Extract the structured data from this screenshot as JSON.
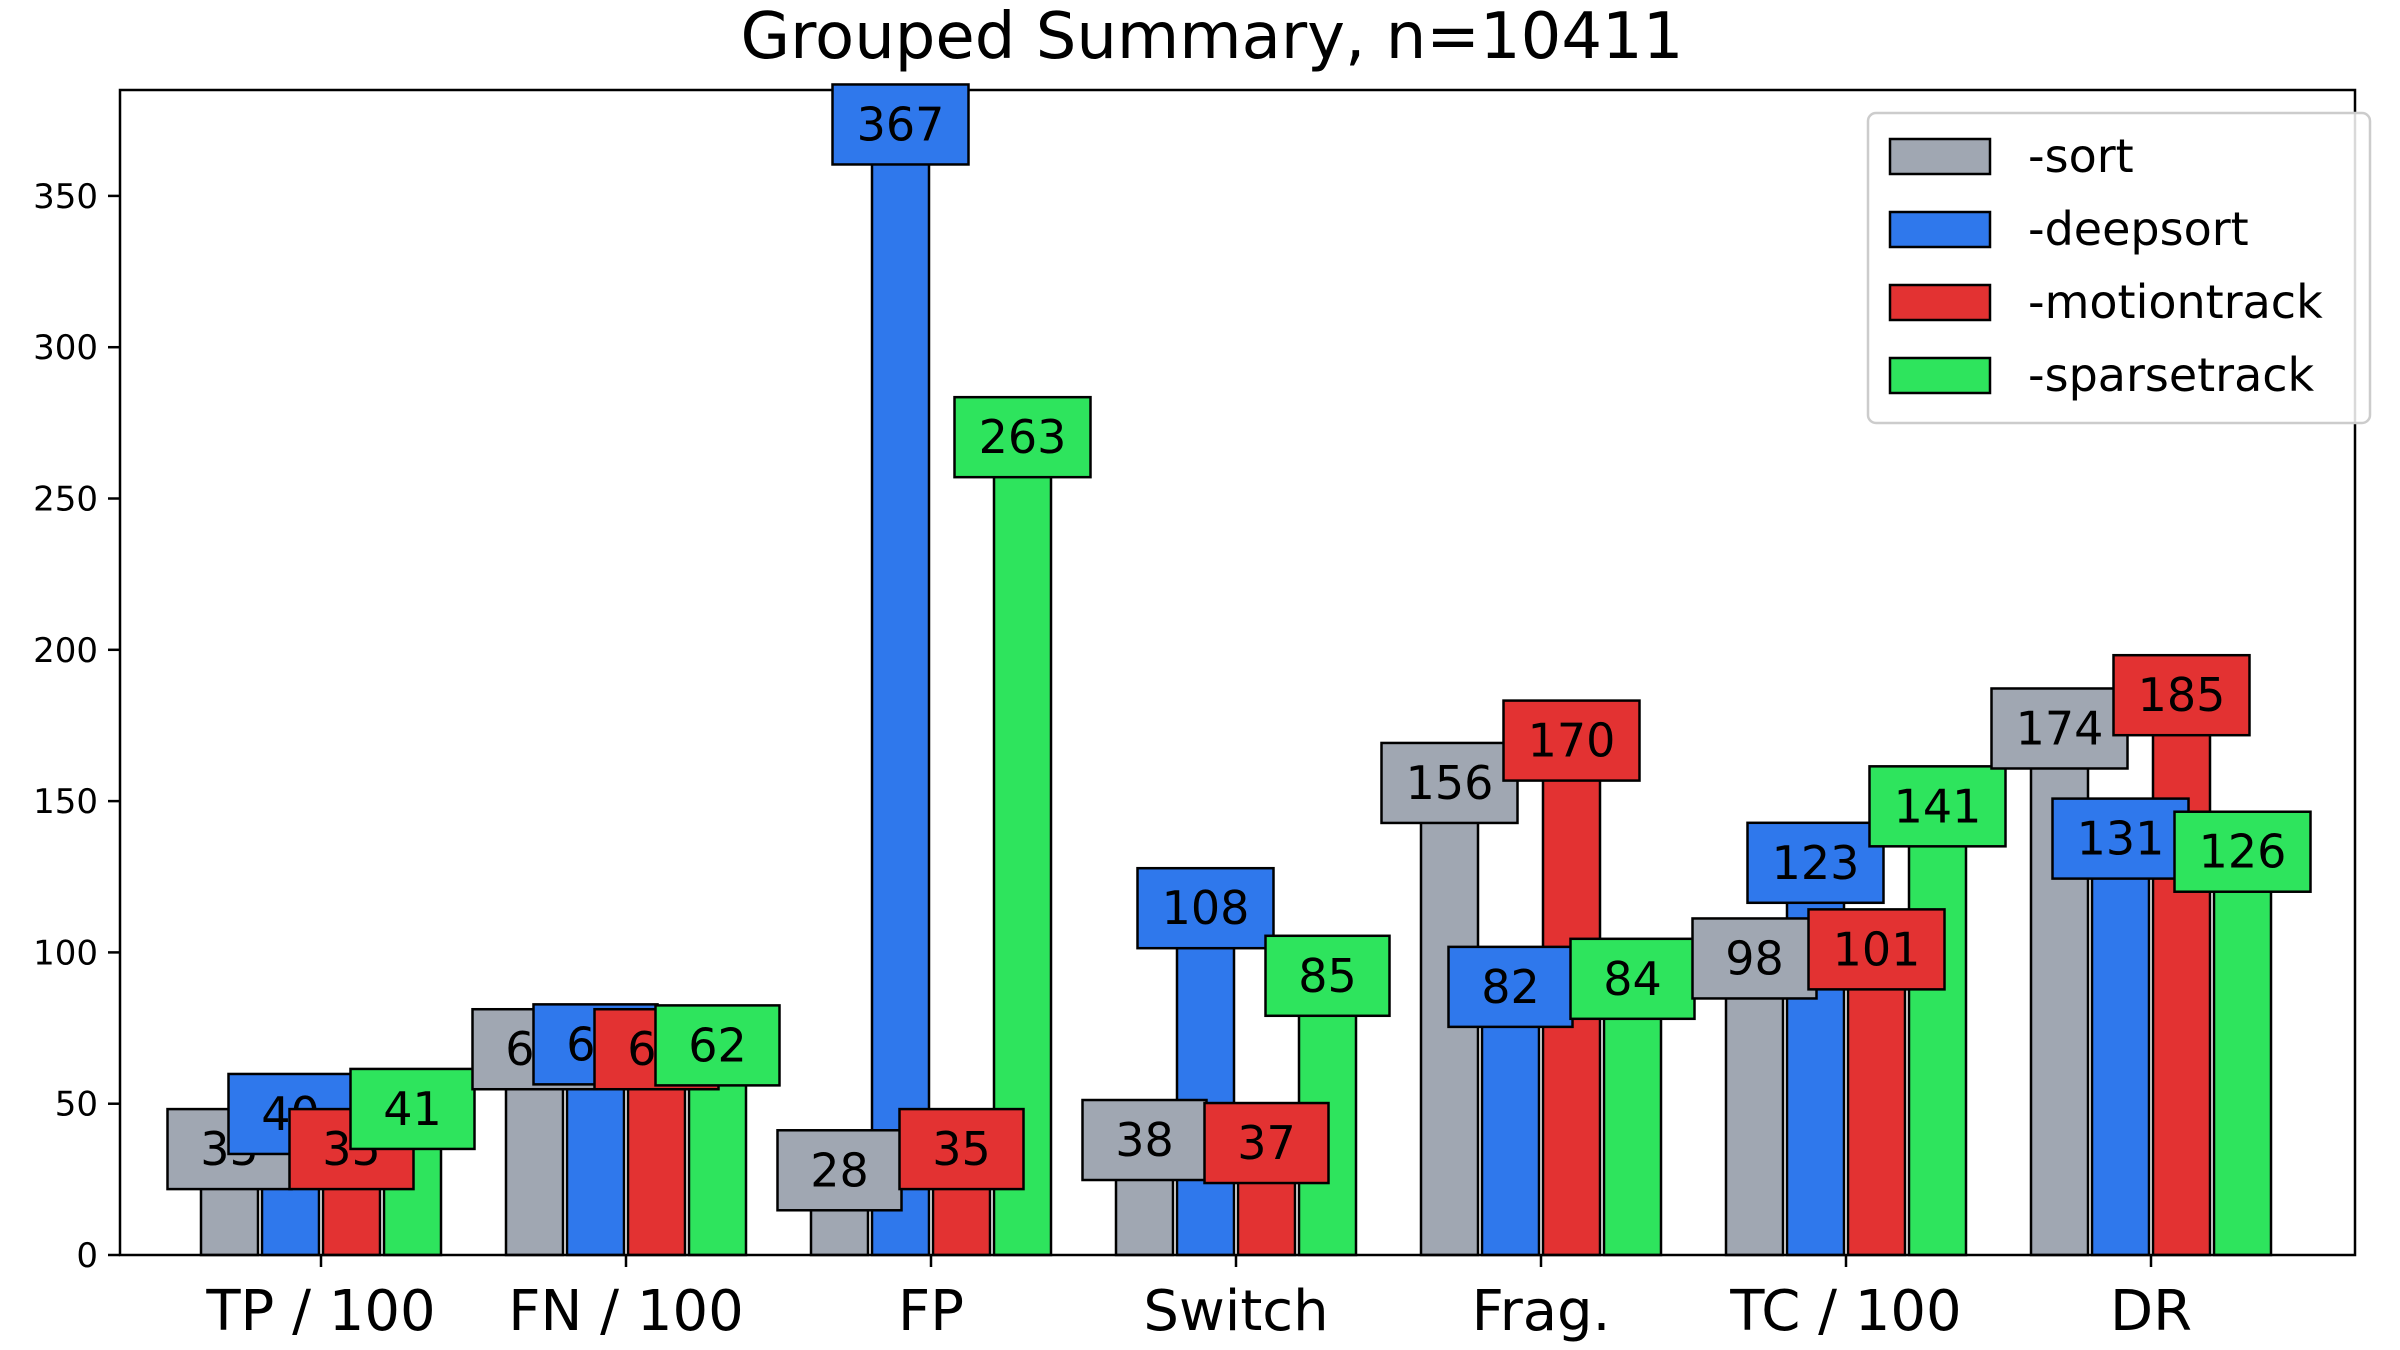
{
  "chart_data": {
    "type": "bar",
    "title": "Grouped Summary, n=10411",
    "xlabel": "",
    "ylabel": "",
    "ylim": [
      0,
      385
    ],
    "yticks": [
      0,
      50,
      100,
      150,
      200,
      250,
      300,
      350
    ],
    "grid": false,
    "legend_position": "top-right",
    "categories": [
      "TP / 100",
      "FN / 100",
      "FP",
      "Switch",
      "Frag.",
      "TC / 100",
      "DR"
    ],
    "series": [
      {
        "name": "-sort",
        "color": "#a0a7b2",
        "values": [
          35,
          68,
          28,
          38,
          156,
          98,
          174
        ]
      },
      {
        "name": "-deepsort",
        "color": "#2f78ec",
        "values": [
          40,
          63,
          367,
          108,
          82,
          123,
          131
        ]
      },
      {
        "name": "-motiontrack",
        "color": "#e33232",
        "values": [
          35,
          68,
          35,
          37,
          170,
          101,
          185
        ]
      },
      {
        "name": "-sparsetrack",
        "color": "#2ee45d",
        "values": [
          41,
          62,
          263,
          85,
          84,
          141,
          126
        ]
      }
    ]
  }
}
